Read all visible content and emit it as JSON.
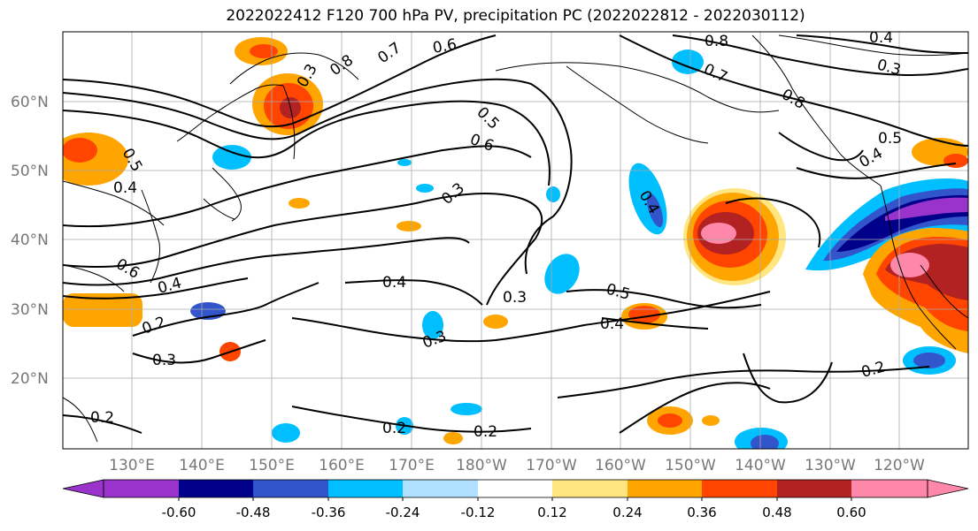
{
  "title": "2022022412 F120 700 hPa PV, precipitation PC (2022022812 - 2022030112)",
  "lat_labels": [
    "60°N",
    "50°N",
    "40°N",
    "30°N",
    "20°N"
  ],
  "lon_labels": [
    "130°E",
    "140°E",
    "150°E",
    "160°E",
    "170°E",
    "180°W",
    "170°W",
    "160°W",
    "150°W",
    "140°W",
    "130°W",
    "120°W"
  ],
  "colorbar": {
    "colors": [
      "#9933cc",
      "#00008b",
      "#3355cc",
      "#00bfff",
      "#b0e0ff",
      "#ffffff",
      "#ffe680",
      "#ffa500",
      "#ff4500",
      "#b22222",
      "#ff88aa"
    ],
    "tick_labels": [
      "-0.60",
      "-0.48",
      "-0.36",
      "-0.24",
      "-0.12",
      "0.12",
      "0.24",
      "0.36",
      "0.48",
      "0.60"
    ]
  },
  "contour_labels": [
    {
      "text": "0.8",
      "color": "#000"
    },
    {
      "text": "0.7",
      "color": "#000"
    },
    {
      "text": "0.6",
      "color": "#000"
    },
    {
      "text": "0.4",
      "color": "#000"
    },
    {
      "text": "0.3",
      "color": "#000"
    },
    {
      "text": "0.8",
      "color": "#000"
    },
    {
      "text": "0.7",
      "color": "#000"
    },
    {
      "text": "0.8",
      "color": "#000"
    },
    {
      "text": "0.5",
      "color": "#000"
    },
    {
      "text": "0.6",
      "color": "#000"
    },
    {
      "text": "0.5",
      "color": "#000"
    },
    {
      "text": "0.4",
      "color": "#000"
    },
    {
      "text": "0.6",
      "color": "#000"
    },
    {
      "text": "0.4",
      "color": "#000"
    },
    {
      "text": "0.3",
      "color": "#000"
    },
    {
      "text": "0.4",
      "color": "#000"
    },
    {
      "text": "0.3",
      "color": "#000"
    },
    {
      "text": "0.2",
      "color": "#000"
    },
    {
      "text": "0.3",
      "color": "#000"
    },
    {
      "text": "0.3",
      "color": "#000"
    },
    {
      "text": "0.5",
      "color": "#000"
    },
    {
      "text": "0.4",
      "color": "#000"
    },
    {
      "text": "0.2",
      "color": "#000"
    },
    {
      "text": "0.2",
      "color": "#000"
    },
    {
      "text": "0.2",
      "color": "#000"
    },
    {
      "text": "0.2",
      "color": "#000"
    },
    {
      "text": "0.3",
      "color": "#000"
    },
    {
      "text": "0.4",
      "color": "#000"
    },
    {
      "text": "0.5",
      "color": "#000"
    },
    {
      "text": "0.4",
      "color": "#000"
    }
  ]
}
